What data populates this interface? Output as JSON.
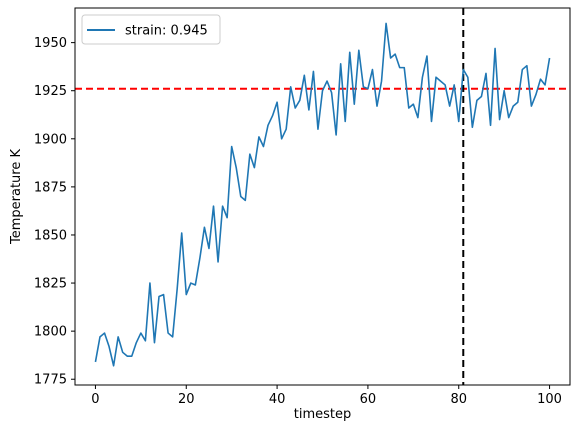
{
  "chart_data": {
    "type": "line",
    "xlabel": "timestep",
    "ylabel": "Temperature K",
    "xlim": [
      -4.5,
      104.5
    ],
    "ylim": [
      1772,
      1968
    ],
    "xticks": [
      0,
      20,
      40,
      60,
      80,
      100
    ],
    "yticks": [
      1775,
      1800,
      1825,
      1850,
      1875,
      1900,
      1925,
      1950
    ],
    "legend_position": "top-left",
    "series": [
      {
        "name": "strain: 0.945",
        "color": "#1f77b4",
        "x": [
          0,
          1,
          2,
          3,
          4,
          5,
          6,
          7,
          8,
          9,
          10,
          11,
          12,
          13,
          14,
          15,
          16,
          17,
          18,
          19,
          20,
          21,
          22,
          23,
          24,
          25,
          26,
          27,
          28,
          29,
          30,
          31,
          32,
          33,
          34,
          35,
          36,
          37,
          38,
          39,
          40,
          41,
          42,
          43,
          44,
          45,
          46,
          47,
          48,
          49,
          50,
          51,
          52,
          53,
          54,
          55,
          56,
          57,
          58,
          59,
          60,
          61,
          62,
          63,
          64,
          65,
          66,
          67,
          68,
          69,
          70,
          71,
          72,
          73,
          74,
          75,
          76,
          77,
          78,
          79,
          80,
          81,
          82,
          83,
          84,
          85,
          86,
          87,
          88,
          89,
          90,
          91,
          92,
          93,
          94,
          95,
          96,
          97,
          98,
          99,
          100
        ],
        "y": [
          1784,
          1797,
          1799,
          1792,
          1782,
          1797,
          1789,
          1787,
          1787,
          1794,
          1799,
          1795,
          1825,
          1794,
          1818,
          1819,
          1799,
          1797,
          1822,
          1851,
          1819,
          1825,
          1824,
          1838,
          1854,
          1843,
          1865,
          1836,
          1865,
          1859,
          1896,
          1885,
          1870,
          1868,
          1892,
          1885,
          1901,
          1896,
          1907,
          1912,
          1919,
          1900,
          1905,
          1927,
          1916,
          1920,
          1933,
          1915,
          1935,
          1905,
          1925,
          1930,
          1924,
          1902,
          1939,
          1909,
          1945,
          1918,
          1946,
          1927,
          1926,
          1936,
          1917,
          1930,
          1960,
          1942,
          1944,
          1937,
          1937,
          1916,
          1918,
          1911,
          1932,
          1943,
          1909,
          1932,
          1930,
          1928,
          1917,
          1928,
          1909,
          1936,
          1932,
          1906,
          1920,
          1922,
          1934,
          1907,
          1947,
          1910,
          1925,
          1911,
          1917,
          1919,
          1936,
          1938,
          1917,
          1923,
          1931,
          1928,
          1942
        ]
      }
    ],
    "reference_lines": [
      {
        "orientation": "horizontal",
        "value": 1926,
        "color": "#ff0000",
        "style": "dashed"
      },
      {
        "orientation": "vertical",
        "value": 81,
        "color": "#000000",
        "style": "dashed"
      }
    ]
  }
}
